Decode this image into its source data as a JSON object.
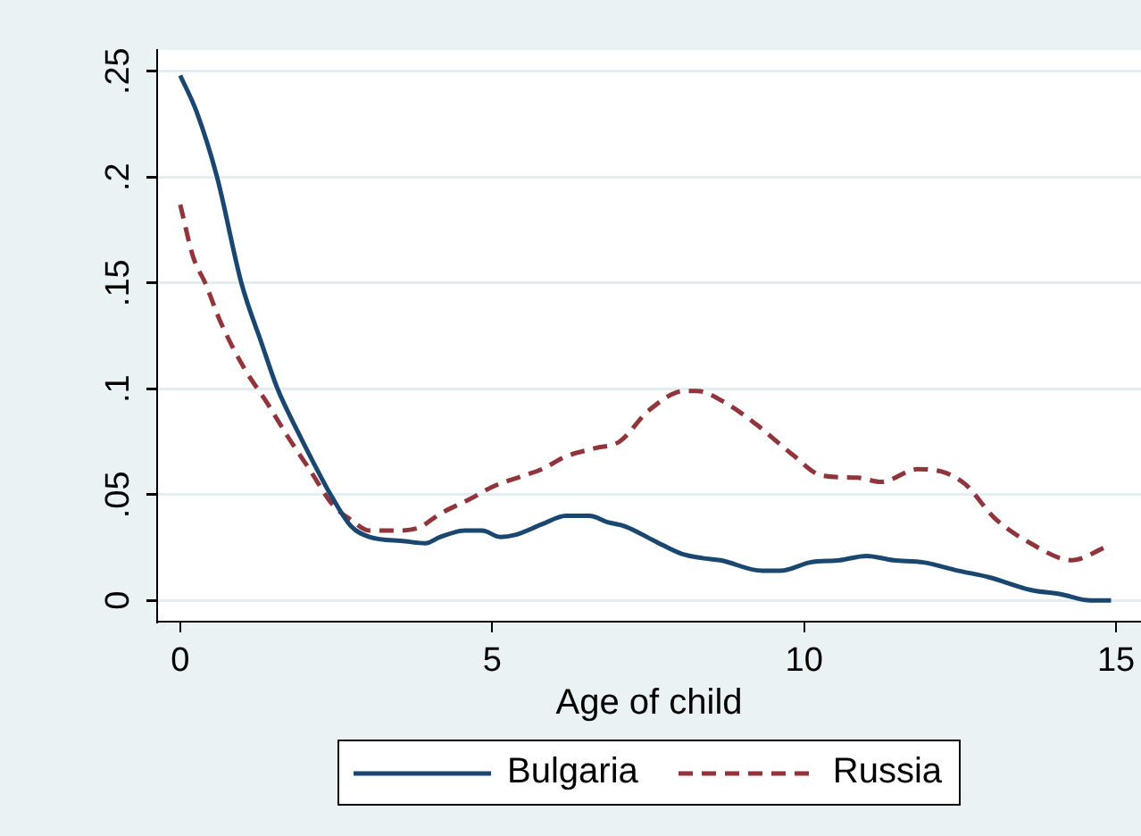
{
  "chart_data": {
    "type": "line",
    "xlabel": "Age of child",
    "series": [
      {
        "name": "Bulgaria",
        "color": "#1a476f",
        "line_style": "solid",
        "x": [
          0,
          0.26,
          0.59,
          0.98,
          1.31,
          1.56,
          1.88,
          2.12,
          2.41,
          2.74,
          3.03,
          3.6,
          3.93,
          4.17,
          4.56,
          4.84,
          5.13,
          5.37,
          5.8,
          6.18,
          6.56,
          6.85,
          7.13,
          7.61,
          8.04,
          8.37,
          8.66,
          9.33,
          9.62,
          10.1,
          10.57,
          11.0,
          11.43,
          11.91,
          12.48,
          12.96,
          13.63,
          14.11,
          14.59,
          14.92
        ],
        "values": [
          0.248,
          0.231,
          0.2,
          0.15,
          0.121,
          0.1,
          0.08,
          0.066,
          0.05,
          0.035,
          0.03,
          0.028,
          0.027,
          0.03,
          0.033,
          0.033,
          0.03,
          0.031,
          0.036,
          0.04,
          0.04,
          0.037,
          0.035,
          0.028,
          0.022,
          0.02,
          0.019,
          0.014,
          0.014,
          0.018,
          0.019,
          0.021,
          0.019,
          0.018,
          0.014,
          0.011,
          0.005,
          0.003,
          0,
          0
        ]
      },
      {
        "name": "Russia",
        "color": "#90353b",
        "line_style": "dashed",
        "x": [
          0,
          0.21,
          0.4,
          0.64,
          1.02,
          1.4,
          1.69,
          2.07,
          2.45,
          2.74,
          3.03,
          3.41,
          3.79,
          4.17,
          4.65,
          5.03,
          5.51,
          5.8,
          6.18,
          6.66,
          7.04,
          7.52,
          8.09,
          8.28,
          8.76,
          9.24,
          9.81,
          10.29,
          10.86,
          11.24,
          11.81,
          12.19,
          12.58,
          13.05,
          13.63,
          14.3,
          14.82
        ],
        "values": [
          0.187,
          0.162,
          0.15,
          0.132,
          0.11,
          0.093,
          0.079,
          0.062,
          0.045,
          0.038,
          0.033,
          0.033,
          0.034,
          0.041,
          0.048,
          0.054,
          0.059,
          0.062,
          0.068,
          0.072,
          0.075,
          0.09,
          0.099,
          0.099,
          0.093,
          0.083,
          0.069,
          0.059,
          0.058,
          0.056,
          0.062,
          0.061,
          0.055,
          0.039,
          0.027,
          0.019,
          0.025
        ]
      }
    ],
    "xlim": [
      -0.37,
      15.4
    ],
    "xticks": [
      0,
      5,
      10,
      15
    ],
    "ylim": [
      -0.01,
      0.26
    ],
    "yticks": [
      0,
      {
        "value": 0.05,
        "label": ".05"
      },
      {
        "value": 0.1,
        "label": ".1"
      },
      {
        "value": 0.15,
        "label": ".15"
      },
      {
        "value": 0.2,
        "label": ".2"
      },
      {
        "value": 0.25,
        "label": ".25"
      }
    ],
    "grid": "y",
    "legend": "bottom"
  }
}
